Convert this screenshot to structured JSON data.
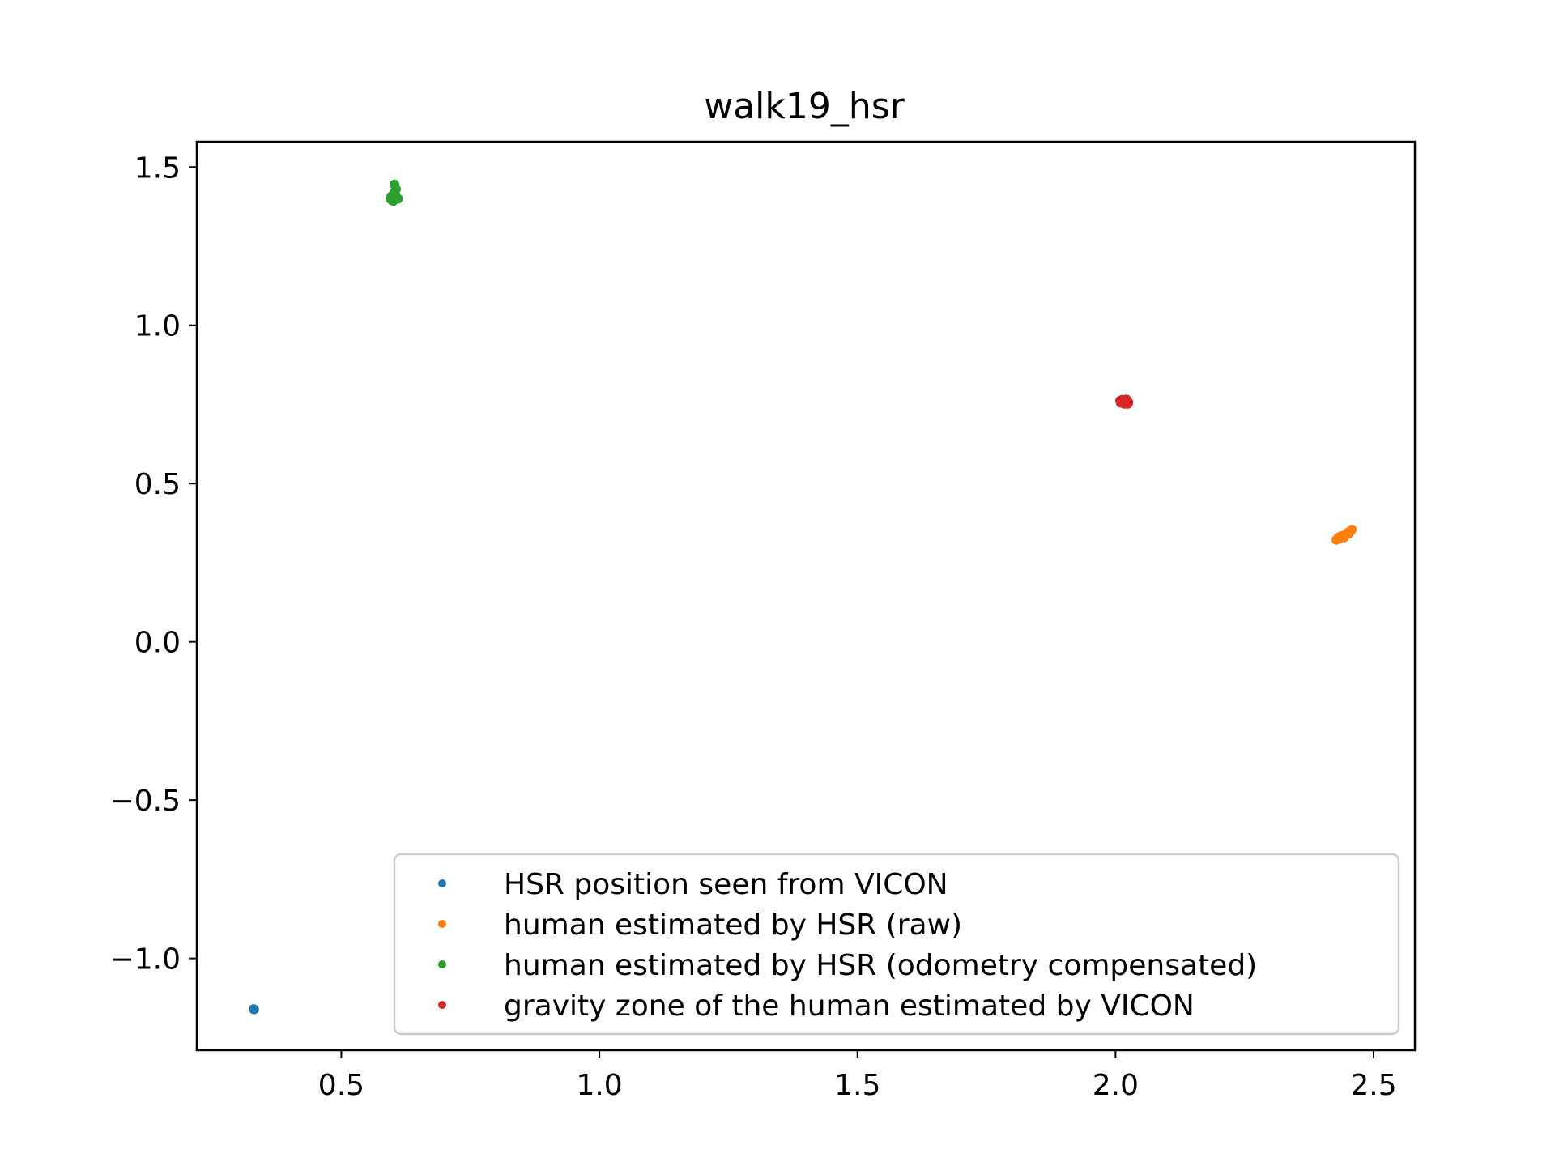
{
  "chart_data": {
    "type": "scatter",
    "title": "walk19_hsr",
    "xlabel": "",
    "ylabel": "",
    "xlim": [
      0.22,
      2.58
    ],
    "ylim": [
      -1.29,
      1.58
    ],
    "xticks": [
      0.5,
      1.0,
      1.5,
      2.0,
      2.5
    ],
    "xtick_labels": [
      "0.5",
      "1.0",
      "1.5",
      "2.0",
      "2.5"
    ],
    "yticks": [
      1.5,
      1.0,
      0.5,
      0.0,
      -0.5,
      -1.0
    ],
    "ytick_labels": [
      "1.5",
      "1.0",
      "0.5",
      "0.0",
      "−0.5",
      "−1.0"
    ],
    "grid": false,
    "legend_position": "lower right",
    "series": [
      {
        "name": "HSR position seen from VICON",
        "color": "#1f77b4",
        "points": [
          [
            0.33,
            -1.16
          ],
          [
            0.331,
            -1.161
          ]
        ]
      },
      {
        "name": "human estimated by HSR (raw)",
        "color": "#ff7f0e",
        "points": [
          [
            2.43,
            0.325
          ],
          [
            2.432,
            0.33
          ],
          [
            2.435,
            0.328
          ],
          [
            2.438,
            0.332
          ],
          [
            2.44,
            0.335
          ],
          [
            2.443,
            0.33
          ],
          [
            2.445,
            0.338
          ],
          [
            2.448,
            0.34
          ],
          [
            2.45,
            0.345
          ],
          [
            2.452,
            0.342
          ],
          [
            2.455,
            0.35
          ],
          [
            2.458,
            0.355
          ],
          [
            2.428,
            0.322
          ],
          [
            2.434,
            0.326
          ],
          [
            2.437,
            0.334
          ]
        ]
      },
      {
        "name": "human estimated by HSR (odometry compensated)",
        "color": "#2ca02c",
        "points": [
          [
            0.595,
            1.4
          ],
          [
            0.598,
            1.395
          ],
          [
            0.6,
            1.405
          ],
          [
            0.602,
            1.398
          ],
          [
            0.605,
            1.41
          ],
          [
            0.608,
            1.402
          ],
          [
            0.603,
            1.42
          ],
          [
            0.606,
            1.43
          ],
          [
            0.603,
            1.445
          ],
          [
            0.61,
            1.4
          ],
          [
            0.597,
            1.408
          ],
          [
            0.601,
            1.393
          ]
        ]
      },
      {
        "name": "gravity zone of the human estimated by VICON",
        "color": "#d62728",
        "points": [
          [
            2.01,
            0.755
          ],
          [
            2.012,
            0.76
          ],
          [
            2.015,
            0.758
          ],
          [
            2.018,
            0.762
          ],
          [
            2.02,
            0.755
          ],
          [
            2.022,
            0.76
          ],
          [
            2.025,
            0.757
          ],
          [
            2.013,
            0.765
          ],
          [
            2.017,
            0.752
          ],
          [
            2.021,
            0.766
          ],
          [
            2.009,
            0.762
          ],
          [
            2.024,
            0.752
          ]
        ]
      }
    ]
  }
}
